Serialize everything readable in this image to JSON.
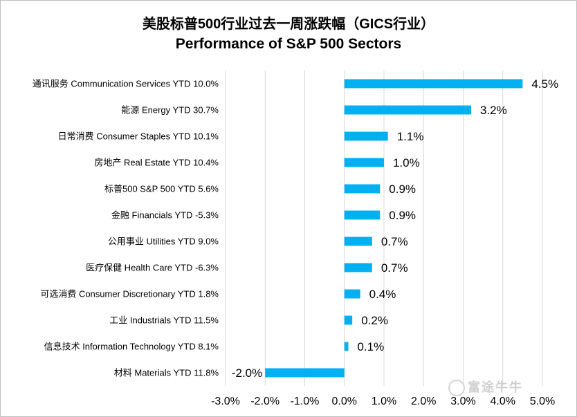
{
  "chart_data": {
    "type": "bar",
    "orientation": "horizontal",
    "title": "美股标普500行业过去一周涨跌幅（GICS行业）",
    "subtitle": "Performance of S&P 500 Sectors",
    "categories": [
      "通讯服务 Communication Services YTD 10.0%",
      "能源 Energy YTD 30.7%",
      "日常消费 Consumer Staples YTD 10.1%",
      "房地产 Real Estate YTD 10.4%",
      "标普500 S&P 500 YTD 5.6%",
      "金融 Financials YTD -5.3%",
      "公用事业 Utilities YTD 9.0%",
      "医疗保健 Health Care YTD -6.3%",
      "可选消费 Consumer Discretionary YTD 1.8%",
      "工业 Industrials YTD 11.5%",
      "信息技术 Information Technology YTD 8.1%",
      "材料 Materials YTD 11.8%"
    ],
    "values": [
      4.5,
      3.2,
      1.1,
      1.0,
      0.9,
      0.9,
      0.7,
      0.7,
      0.4,
      0.2,
      0.1,
      -2.0
    ],
    "value_labels": [
      "4.5%",
      "3.2%",
      "1.1%",
      "1.0%",
      "0.9%",
      "0.9%",
      "0.7%",
      "0.7%",
      "0.4%",
      "0.2%",
      "0.1%",
      "-2.0%"
    ],
    "xlim": [
      -3.0,
      5.0
    ],
    "xticks": [
      -3.0,
      -2.0,
      -1.0,
      0.0,
      1.0,
      2.0,
      3.0,
      4.0,
      5.0
    ],
    "xtick_labels": [
      "-3.0%",
      "-2.0%",
      "-1.0%",
      "0.0%",
      "1.0%",
      "2.0%",
      "3.0%",
      "4.0%",
      "5.0%"
    ],
    "grid": "vertical",
    "bar_color": "#00b0f0",
    "grid_color": "#d9d9d9"
  },
  "watermark": "富途牛牛"
}
